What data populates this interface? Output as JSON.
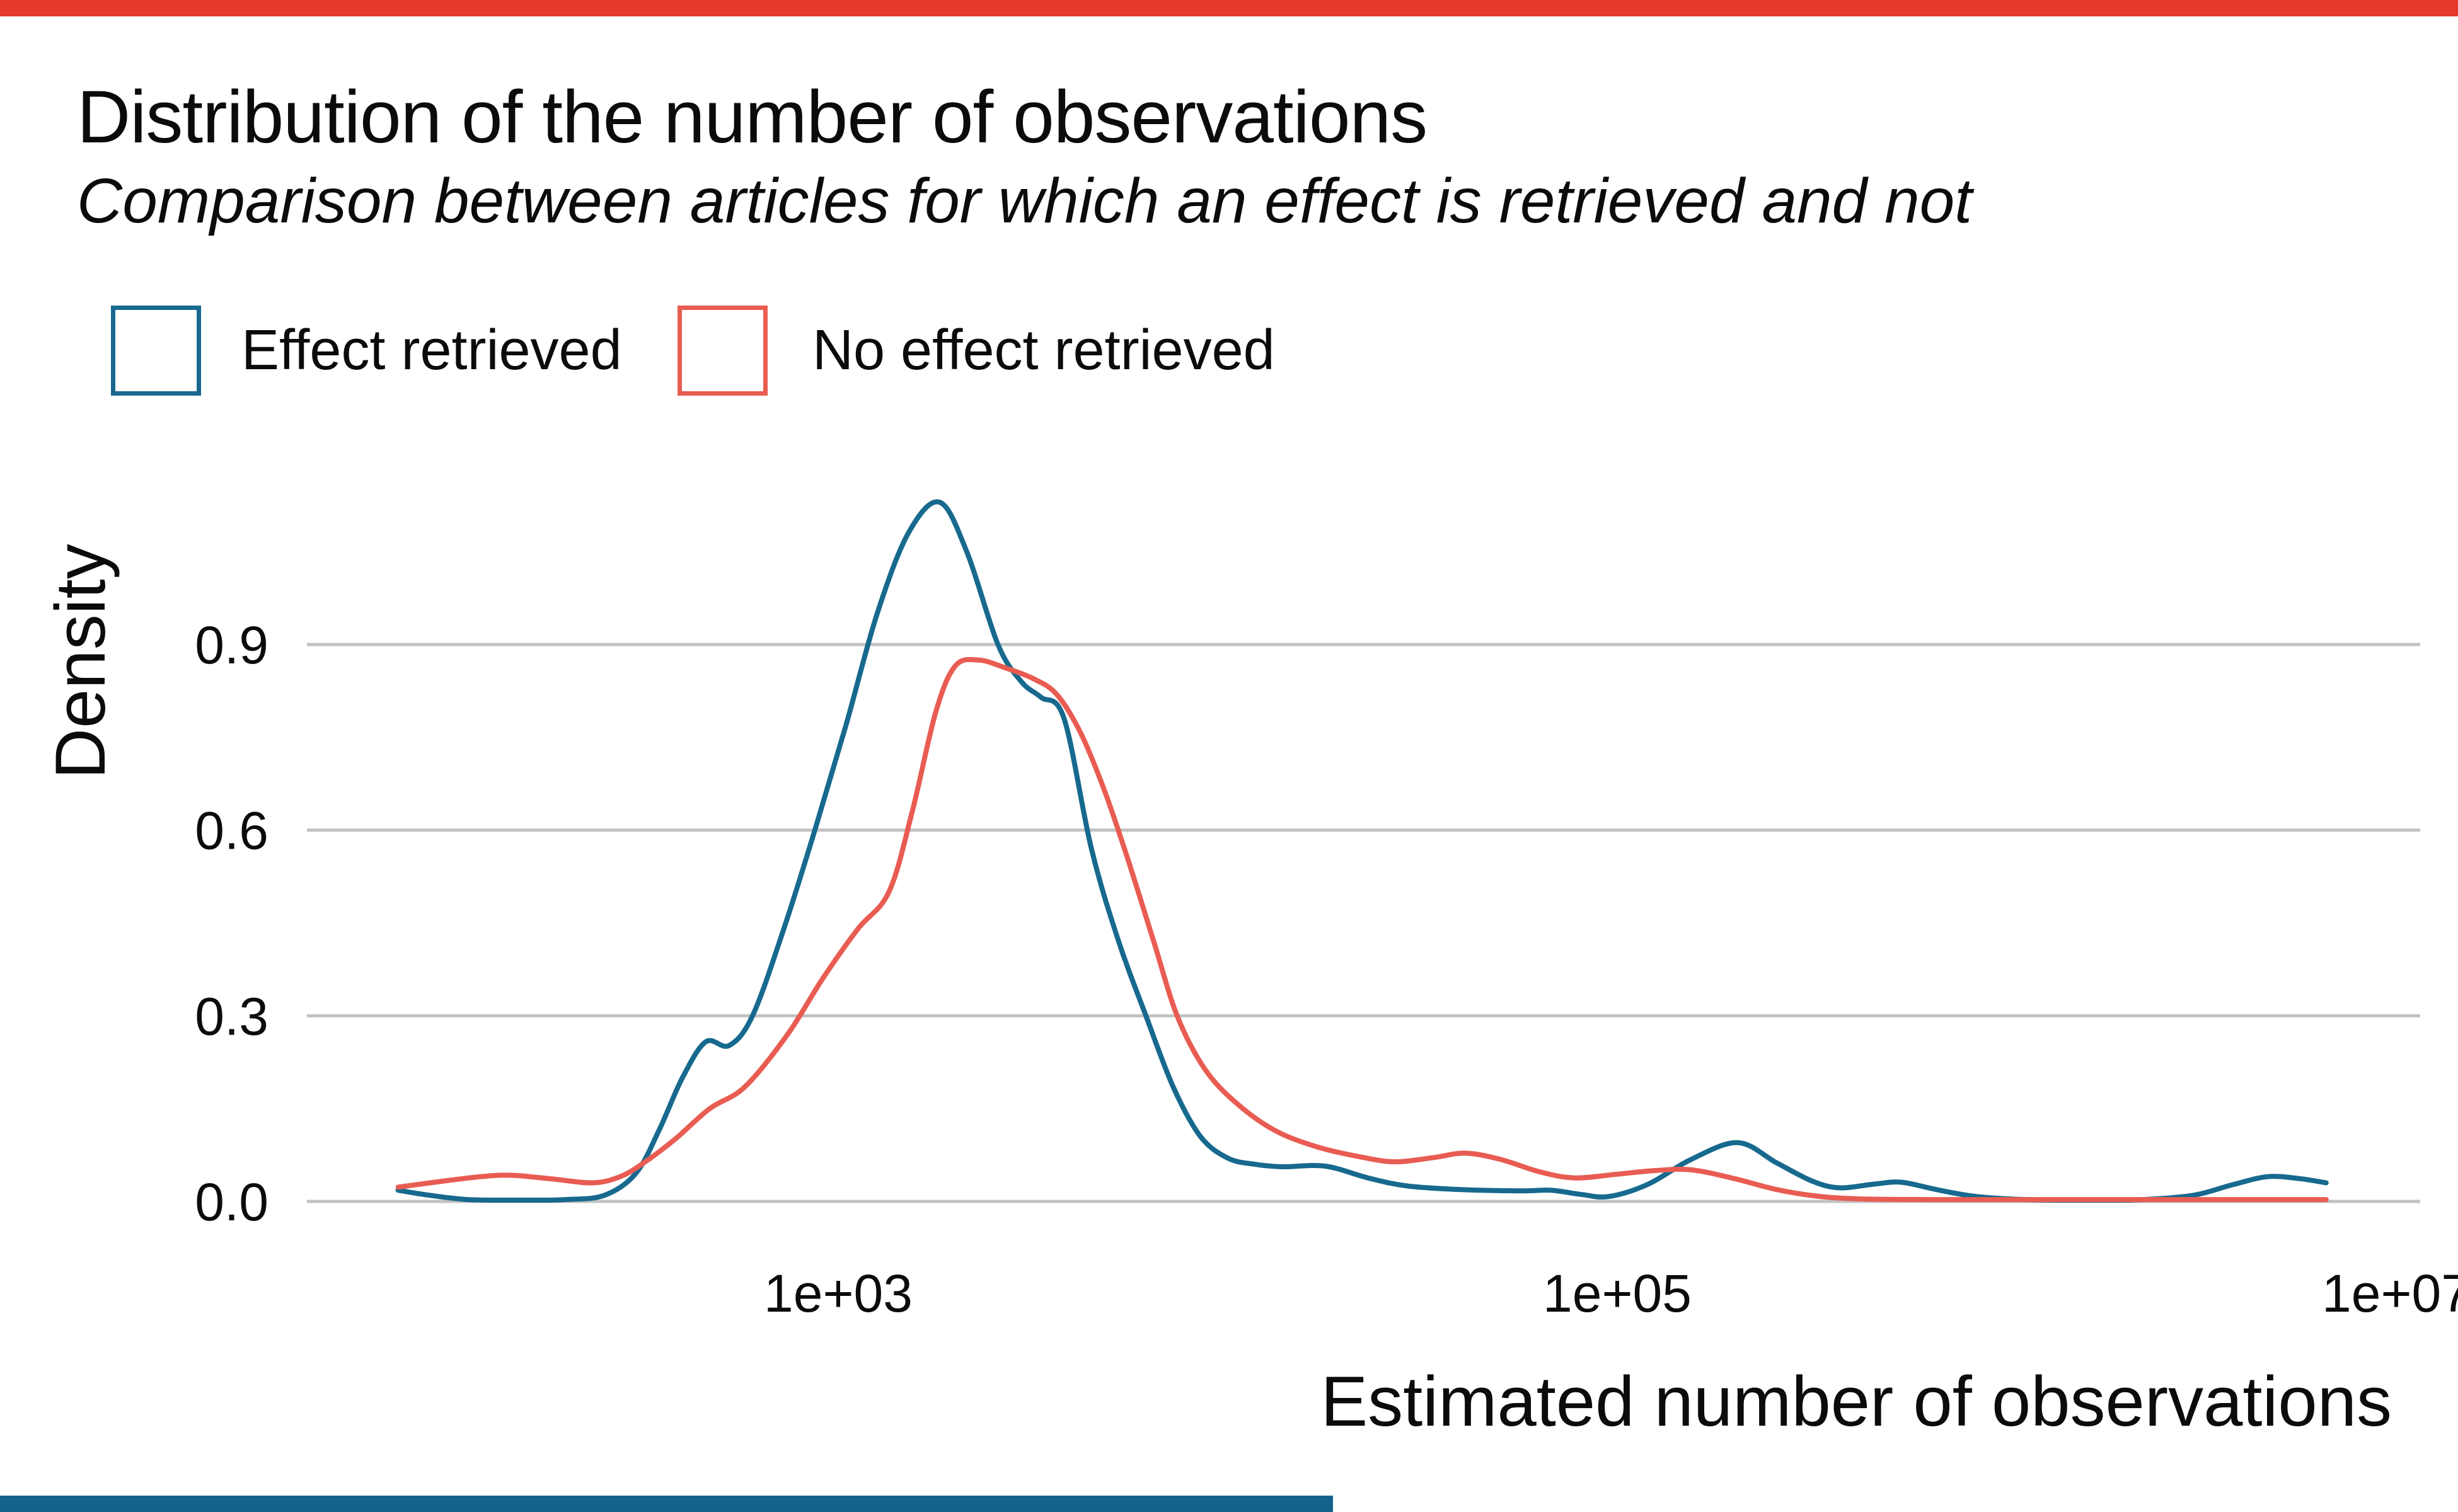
{
  "title": "Distribution of the number of observations",
  "subtitle": "Comparison between articles for which an effect is retrieved and not",
  "decorations": {
    "top_bar_color": "#e6392b",
    "bottom_bar_color": "#15638d"
  },
  "legend": [
    {
      "label": "Effect retrieved",
      "color": "#17698e"
    },
    {
      "label": "No effect retrieved",
      "color": "#e95c52"
    }
  ],
  "chart_data": {
    "type": "line",
    "title": "Distribution of the number of observations",
    "subtitle": "Comparison between articles for which an effect is retrieved and not",
    "xlabel": "Estimated number of observations",
    "ylabel": "Density",
    "x_scale": "log10",
    "xlim_log10": [
      1.64,
      7.06
    ],
    "ylim": [
      0,
      1.19
    ],
    "grid": "horizontal-only",
    "gridline_color": "#c2c2c2",
    "legend_position": "top-left",
    "x_ticks": [
      {
        "value": 1000,
        "label": "1e+03",
        "log10": 3
      },
      {
        "value": 100000,
        "label": "1e+05",
        "log10": 5
      },
      {
        "value": 10000000,
        "label": "1e+07",
        "log10": 7
      }
    ],
    "y_ticks": [
      {
        "value": 0.0,
        "label": "0.0"
      },
      {
        "value": 0.3,
        "label": "0.3"
      },
      {
        "value": 0.6,
        "label": "0.6"
      },
      {
        "value": 0.9,
        "label": "0.9"
      }
    ],
    "series": [
      {
        "name": "Effect retrieved",
        "color": "#17698e",
        "stroke_width": 8,
        "points_log10x_density": [
          [
            1.87,
            0.018
          ],
          [
            1.95,
            0.01
          ],
          [
            2.05,
            0.003
          ],
          [
            2.18,
            0.002
          ],
          [
            2.3,
            0.003
          ],
          [
            2.4,
            0.01
          ],
          [
            2.48,
            0.045
          ],
          [
            2.54,
            0.115
          ],
          [
            2.6,
            0.2
          ],
          [
            2.66,
            0.258
          ],
          [
            2.72,
            0.252
          ],
          [
            2.78,
            0.3
          ],
          [
            2.86,
            0.44
          ],
          [
            2.94,
            0.6
          ],
          [
            3.02,
            0.77
          ],
          [
            3.1,
            0.95
          ],
          [
            3.18,
            1.08
          ],
          [
            3.26,
            1.13
          ],
          [
            3.33,
            1.05
          ],
          [
            3.41,
            0.9
          ],
          [
            3.47,
            0.84
          ],
          [
            3.52,
            0.815
          ],
          [
            3.58,
            0.78
          ],
          [
            3.65,
            0.57
          ],
          [
            3.72,
            0.42
          ],
          [
            3.79,
            0.3
          ],
          [
            3.86,
            0.185
          ],
          [
            3.93,
            0.105
          ],
          [
            4.0,
            0.07
          ],
          [
            4.07,
            0.06
          ],
          [
            4.14,
            0.056
          ],
          [
            4.25,
            0.057
          ],
          [
            4.36,
            0.038
          ],
          [
            4.46,
            0.025
          ],
          [
            4.6,
            0.019
          ],
          [
            4.75,
            0.017
          ],
          [
            4.83,
            0.018
          ],
          [
            4.91,
            0.011
          ],
          [
            4.98,
            0.008
          ],
          [
            5.08,
            0.028
          ],
          [
            5.19,
            0.068
          ],
          [
            5.31,
            0.095
          ],
          [
            5.41,
            0.062
          ],
          [
            5.5,
            0.033
          ],
          [
            5.57,
            0.022
          ],
          [
            5.66,
            0.028
          ],
          [
            5.73,
            0.031
          ],
          [
            5.82,
            0.019
          ],
          [
            5.92,
            0.008
          ],
          [
            6.05,
            0.003
          ],
          [
            6.2,
            0.002
          ],
          [
            6.35,
            0.003
          ],
          [
            6.48,
            0.01
          ],
          [
            6.58,
            0.027
          ],
          [
            6.67,
            0.04
          ],
          [
            6.75,
            0.037
          ],
          [
            6.82,
            0.03
          ]
        ]
      },
      {
        "name": "No effect retrieved",
        "color": "#e95c52",
        "stroke_width": 8,
        "points_log10x_density": [
          [
            1.87,
            0.023
          ],
          [
            2.0,
            0.034
          ],
          [
            2.1,
            0.041
          ],
          [
            2.17,
            0.042
          ],
          [
            2.27,
            0.036
          ],
          [
            2.37,
            0.03
          ],
          [
            2.44,
            0.04
          ],
          [
            2.5,
            0.062
          ],
          [
            2.58,
            0.1
          ],
          [
            2.67,
            0.15
          ],
          [
            2.76,
            0.185
          ],
          [
            2.87,
            0.27
          ],
          [
            2.96,
            0.36
          ],
          [
            3.05,
            0.44
          ],
          [
            3.13,
            0.5
          ],
          [
            3.19,
            0.63
          ],
          [
            3.25,
            0.79
          ],
          [
            3.3,
            0.865
          ],
          [
            3.36,
            0.875
          ],
          [
            3.43,
            0.862
          ],
          [
            3.5,
            0.845
          ],
          [
            3.56,
            0.82
          ],
          [
            3.62,
            0.76
          ],
          [
            3.68,
            0.67
          ],
          [
            3.74,
            0.56
          ],
          [
            3.81,
            0.42
          ],
          [
            3.87,
            0.3
          ],
          [
            3.94,
            0.215
          ],
          [
            4.02,
            0.16
          ],
          [
            4.12,
            0.115
          ],
          [
            4.23,
            0.088
          ],
          [
            4.34,
            0.072
          ],
          [
            4.43,
            0.064
          ],
          [
            4.53,
            0.071
          ],
          [
            4.61,
            0.078
          ],
          [
            4.7,
            0.068
          ],
          [
            4.8,
            0.048
          ],
          [
            4.89,
            0.038
          ],
          [
            5.0,
            0.044
          ],
          [
            5.1,
            0.05
          ],
          [
            5.19,
            0.051
          ],
          [
            5.3,
            0.037
          ],
          [
            5.41,
            0.019
          ],
          [
            5.52,
            0.008
          ],
          [
            5.63,
            0.004
          ],
          [
            5.8,
            0.003
          ],
          [
            6.0,
            0.003
          ],
          [
            6.25,
            0.003
          ],
          [
            6.5,
            0.003
          ],
          [
            6.7,
            0.003
          ],
          [
            6.82,
            0.003
          ]
        ]
      }
    ]
  }
}
